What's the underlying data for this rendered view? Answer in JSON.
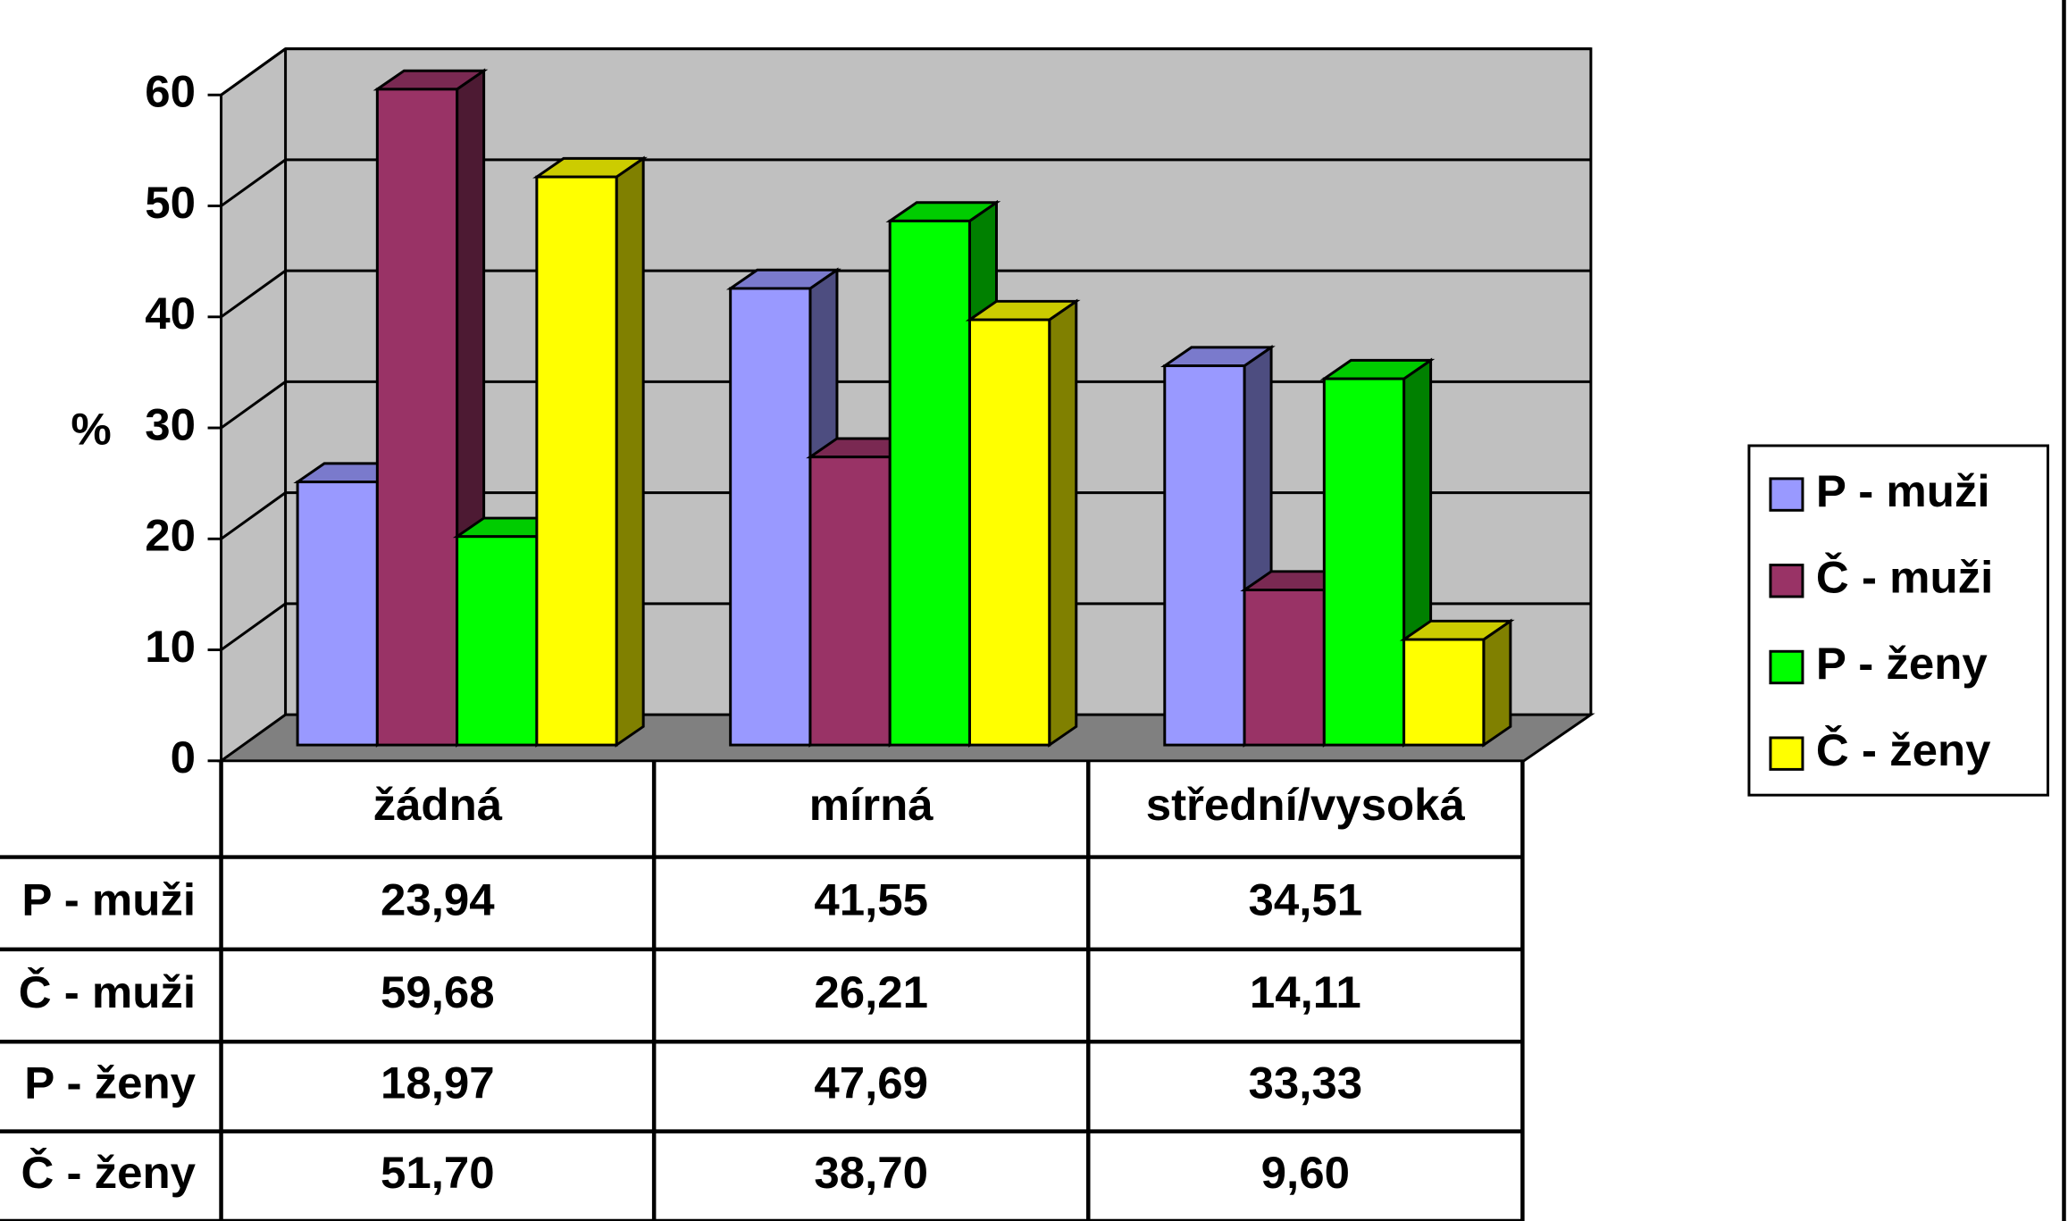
{
  "chart_data": {
    "type": "bar3d",
    "y_label": "%",
    "categories": [
      "žádná",
      "mírná",
      "střední/vysoká"
    ],
    "series": [
      {
        "name": "P - muži",
        "color": "#9999ff",
        "values": [
          23.94,
          41.55,
          34.51
        ],
        "value_labels": [
          "23,94",
          "41,55",
          "34,51"
        ]
      },
      {
        "name": "Č - muži",
        "color": "#993366",
        "values": [
          59.68,
          26.21,
          14.11
        ],
        "value_labels": [
          "59,68",
          "26,21",
          "14,11"
        ]
      },
      {
        "name": "P - ženy",
        "color": "#00ff00",
        "values": [
          18.97,
          47.69,
          33.33
        ],
        "value_labels": [
          "18,97",
          "47,69",
          "33,33"
        ]
      },
      {
        "name": "Č - ženy",
        "color": "#ffff00",
        "values": [
          51.7,
          38.7,
          9.6
        ],
        "value_labels": [
          "51,70",
          "38,70",
          "9,60"
        ]
      }
    ],
    "ylim": [
      0,
      60
    ],
    "yticks": [
      0,
      10,
      20,
      30,
      40,
      50,
      60
    ],
    "grid": true,
    "legend": "right"
  }
}
